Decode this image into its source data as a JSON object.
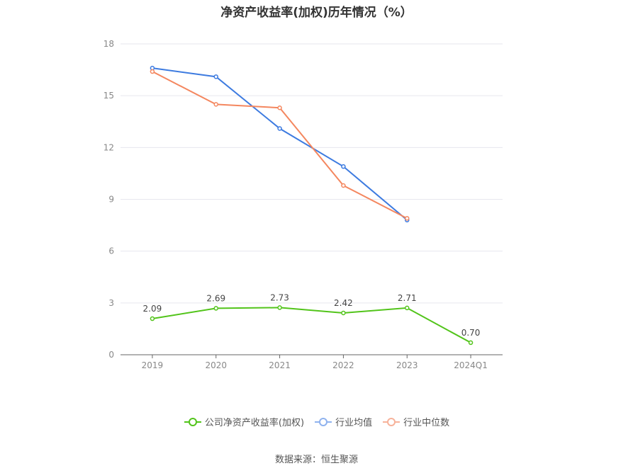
{
  "chart_data": {
    "type": "line",
    "title": "净资产收益率(加权)历年情况（%）",
    "categories": [
      "2019",
      "2020",
      "2021",
      "2022",
      "2023",
      "2024Q1"
    ],
    "y_ticks": [
      "0",
      "3",
      "6",
      "9",
      "12",
      "15",
      "18"
    ],
    "ylim": [
      0,
      18
    ],
    "grid": true,
    "legend_position": "bottom",
    "series": [
      {
        "name": "公司净资产收益率(加权)",
        "color": "#52c41a",
        "values": [
          2.09,
          2.69,
          2.73,
          2.42,
          2.71,
          0.7
        ],
        "labels": [
          "2.09",
          "2.69",
          "2.73",
          "2.42",
          "2.71",
          "0.70"
        ]
      },
      {
        "name": "行业均值",
        "color": "#3d7be0",
        "values": [
          16.6,
          16.1,
          13.1,
          10.9,
          7.8,
          null
        ]
      },
      {
        "name": "行业中位数",
        "color": "#f4875f",
        "values": [
          16.4,
          14.5,
          14.3,
          9.8,
          7.9,
          null
        ]
      }
    ]
  },
  "source_text": "数据来源：恒生聚源"
}
